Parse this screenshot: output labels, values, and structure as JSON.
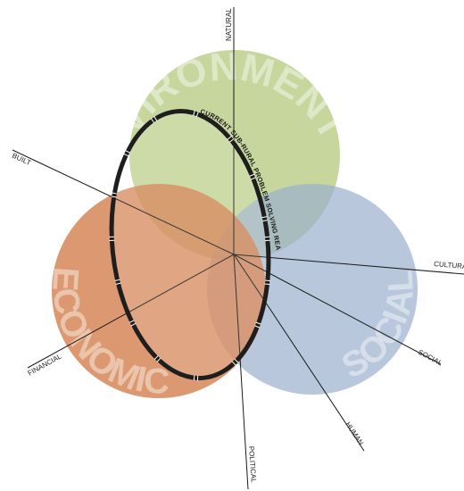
{
  "circles": [
    {
      "key": "environmental",
      "label": "ENVIRONMENTAL",
      "color": "#b9cd88"
    },
    {
      "key": "social",
      "label": "SOCIAL",
      "color": "#9db2cd"
    },
    {
      "key": "economic",
      "label": "ECONOMIC",
      "color": "#d3804e"
    }
  ],
  "axes": [
    {
      "key": "natural",
      "label": "NATURAL"
    },
    {
      "key": "built",
      "label": "BUILT"
    },
    {
      "key": "cultural",
      "label": "CULTURAL"
    },
    {
      "key": "social",
      "label": "SOCIAL"
    },
    {
      "key": "human",
      "label": "HUMAN"
    },
    {
      "key": "political",
      "label": "POLITICAL"
    },
    {
      "key": "financial",
      "label": "FINANCIAL"
    }
  ],
  "realm": {
    "label": "CURRENT SUB-RURAL PROBLEM SOLVING REALM",
    "stroke_color": "#1e1e1e"
  }
}
